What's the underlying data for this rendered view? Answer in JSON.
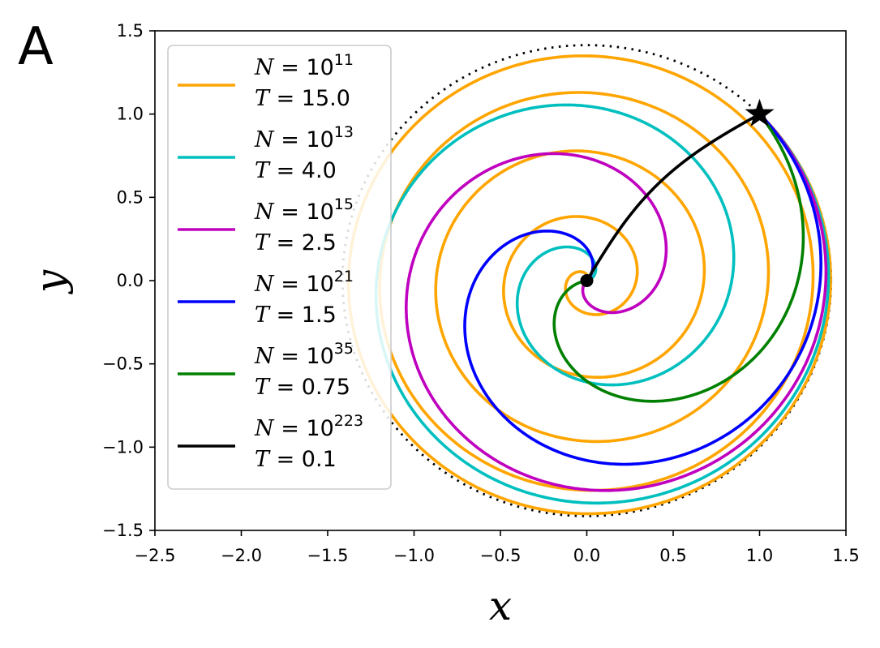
{
  "chart_data": {
    "type": "line",
    "panel_label": "A",
    "xlabel": "x",
    "ylabel": "y",
    "xlim": [
      -2.5,
      1.5
    ],
    "ylim": [
      -1.5,
      1.5
    ],
    "xticks": [
      -2.5,
      -2.0,
      -1.5,
      -1.0,
      -0.5,
      0.0,
      0.5,
      1.0,
      1.5
    ],
    "yticks": [
      -1.5,
      -1.0,
      -0.5,
      0.0,
      0.5,
      1.0,
      1.5
    ],
    "xtick_labels": [
      "−2.5",
      "−2.0",
      "−1.5",
      "−1.0",
      "−0.5",
      "0.0",
      "0.5",
      "1.0",
      "1.5"
    ],
    "ytick_labels": [
      "−1.5",
      "−1.0",
      "−0.5",
      "0.0",
      "0.5",
      "1.0",
      "1.5"
    ],
    "grid": false,
    "legend_position": "upper-left",
    "start_point": {
      "x": 1.0,
      "y": 1.0,
      "marker": "star"
    },
    "end_point": {
      "x": 0.0,
      "y": 0.0,
      "marker": "circle"
    },
    "reference_circle": {
      "radius": 1.414,
      "style": "dotted",
      "color": "#000000"
    },
    "series": [
      {
        "n_label": "N = 10",
        "n_exp": "11",
        "t_label": "T = 15.0",
        "color": "#FFA500",
        "turns": 5.0,
        "bulge": 0.3
      },
      {
        "n_label": "N = 10",
        "n_exp": "13",
        "t_label": "T = 4.0",
        "color": "#00BFBF",
        "turns": 2.1,
        "bulge": 0.28
      },
      {
        "n_label": "N = 10",
        "n_exp": "15",
        "t_label": "T = 2.5",
        "color": "#BF00BF",
        "turns": 1.5,
        "bulge": 0.26
      },
      {
        "n_label": "N = 10",
        "n_exp": "21",
        "t_label": "T = 1.5",
        "color": "#0000FF",
        "turns": 1.0,
        "bulge": 0.24
      },
      {
        "n_label": "N = 10",
        "n_exp": "35",
        "t_label": "T = 0.75",
        "color": "#008000",
        "turns": 0.6,
        "bulge": 0.15
      },
      {
        "n_label": "N = 10",
        "n_exp": "223",
        "t_label": "T = 0.1",
        "color": "#000000",
        "turns": 0.0,
        "bulge": 0.0
      }
    ]
  }
}
